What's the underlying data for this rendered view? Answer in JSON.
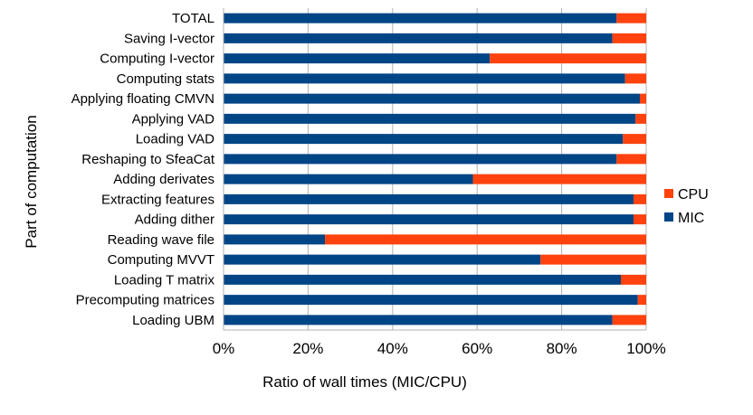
{
  "chart_data": {
    "type": "bar",
    "orientation": "horizontal",
    "stacked": true,
    "xlabel": "Ratio of wall times (MIC/CPU)",
    "ylabel": "Part of computation",
    "xlim": [
      0,
      100
    ],
    "xticks": [
      "0%",
      "20%",
      "40%",
      "60%",
      "80%",
      "100%"
    ],
    "grid": "vertical",
    "legend_position": "right",
    "categories": [
      "TOTAL",
      "Saving I-vector",
      "Computing I-vector",
      "Computing stats",
      "Applying floating CMVN",
      "Applying VAD",
      "Loading VAD",
      "Reshaping to SfeaCat",
      "Adding derivates",
      "Extracting features",
      "Adding dither",
      "Reading wave file",
      "Computing MVVT",
      "Loading T matrix",
      "Precomputing matrices",
      "Loading UBM"
    ],
    "series": [
      {
        "name": "MIC",
        "color": "#004586",
        "values": [
          93,
          92,
          63,
          95,
          98.5,
          97.5,
          94.5,
          93,
          59,
          97,
          97,
          24,
          75,
          94,
          98,
          92
        ]
      },
      {
        "name": "CPU",
        "color": "#ff420e",
        "values": [
          7,
          8,
          37,
          5,
          1.5,
          2.5,
          5.5,
          7,
          41,
          3,
          3,
          76,
          25,
          6,
          2,
          8
        ]
      }
    ],
    "legend": [
      {
        "name": "CPU",
        "color": "#ff420e"
      },
      {
        "name": "MIC",
        "color": "#004586"
      }
    ]
  }
}
